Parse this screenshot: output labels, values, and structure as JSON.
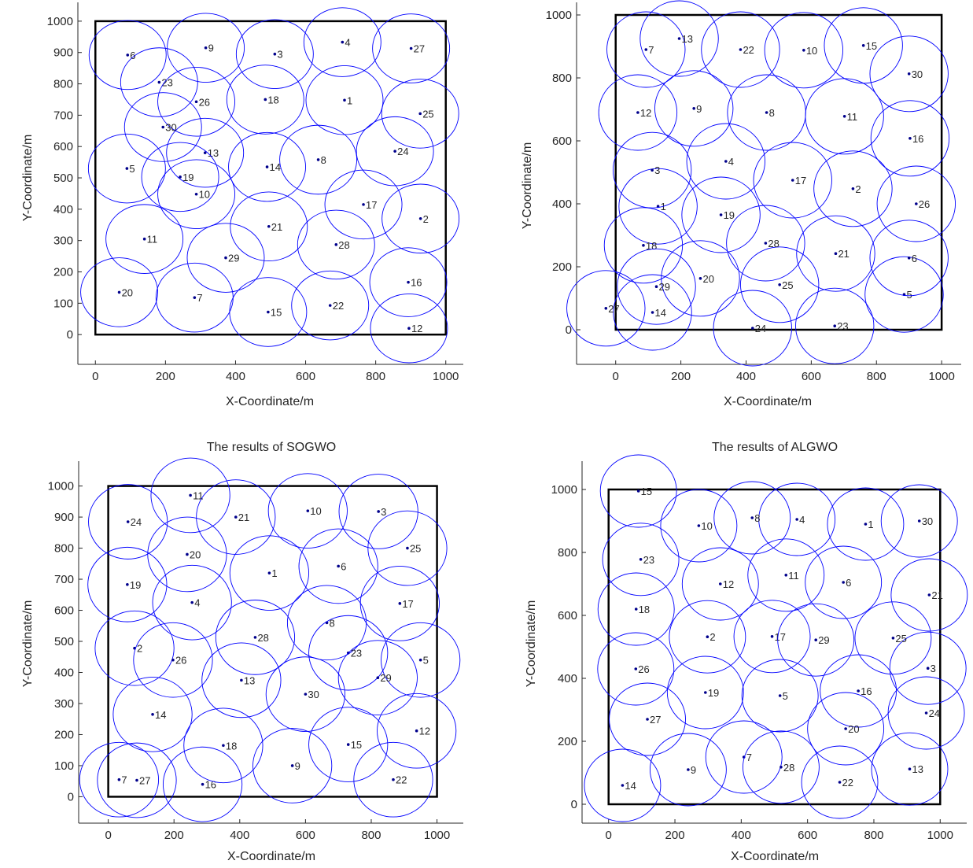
{
  "colors": {
    "circle": "#0000ff",
    "dot": "#00008b",
    "frame": "#000000",
    "axis": "#262626"
  },
  "chart_data": [
    {
      "type": "scatter",
      "title": "",
      "xlabel": "X-Coordinate/m",
      "ylabel": "Y-Coordinate/m",
      "xlim": [
        -50,
        1050
      ],
      "ylim": [
        -95,
        1060
      ],
      "xticks": [
        0,
        200,
        400,
        600,
        800,
        1000
      ],
      "yticks": [
        0,
        100,
        200,
        300,
        400,
        500,
        600,
        700,
        800,
        900,
        1000
      ],
      "region": [
        0,
        1000
      ],
      "radius": 110,
      "sensors": [
        {
          "id": "1",
          "x": 711,
          "y": 748
        },
        {
          "id": "2",
          "x": 928,
          "y": 370
        },
        {
          "id": "3",
          "x": 512,
          "y": 895
        },
        {
          "id": "4",
          "x": 705,
          "y": 933
        },
        {
          "id": "5",
          "x": 90,
          "y": 530
        },
        {
          "id": "6",
          "x": 92,
          "y": 892
        },
        {
          "id": "7",
          "x": 283,
          "y": 118
        },
        {
          "id": "8",
          "x": 636,
          "y": 558
        },
        {
          "id": "9",
          "x": 315,
          "y": 915
        },
        {
          "id": "10",
          "x": 288,
          "y": 448
        },
        {
          "id": "11",
          "x": 140,
          "y": 305
        },
        {
          "id": "12",
          "x": 895,
          "y": 20
        },
        {
          "id": "13",
          "x": 313,
          "y": 580
        },
        {
          "id": "14",
          "x": 490,
          "y": 535
        },
        {
          "id": "15",
          "x": 493,
          "y": 72
        },
        {
          "id": "16",
          "x": 893,
          "y": 167
        },
        {
          "id": "17",
          "x": 765,
          "y": 415
        },
        {
          "id": "18",
          "x": 485,
          "y": 750
        },
        {
          "id": "19",
          "x": 242,
          "y": 503
        },
        {
          "id": "20",
          "x": 68,
          "y": 135
        },
        {
          "id": "21",
          "x": 495,
          "y": 345
        },
        {
          "id": "22",
          "x": 670,
          "y": 93
        },
        {
          "id": "23",
          "x": 182,
          "y": 805
        },
        {
          "id": "24",
          "x": 855,
          "y": 585
        },
        {
          "id": "25",
          "x": 927,
          "y": 705
        },
        {
          "id": "26",
          "x": 288,
          "y": 743
        },
        {
          "id": "27",
          "x": 901,
          "y": 913
        },
        {
          "id": "28",
          "x": 687,
          "y": 287
        },
        {
          "id": "29",
          "x": 372,
          "y": 245
        },
        {
          "id": "30",
          "x": 193,
          "y": 662
        }
      ]
    },
    {
      "type": "scatter",
      "title": "",
      "xlabel": "X-Coordinate/m",
      "ylabel": "Y-Coordinate/m",
      "xlim": [
        -120,
        1060
      ],
      "ylim": [
        -110,
        1040
      ],
      "xticks": [
        0,
        200,
        400,
        600,
        800,
        1000
      ],
      "yticks": [
        0,
        200,
        400,
        600,
        800,
        1000
      ],
      "region": [
        0,
        1000
      ],
      "radius": 120,
      "sensors": [
        {
          "id": "1",
          "x": 130,
          "y": 392
        },
        {
          "id": "2",
          "x": 728,
          "y": 448
        },
        {
          "id": "3",
          "x": 112,
          "y": 507
        },
        {
          "id": "4",
          "x": 338,
          "y": 535
        },
        {
          "id": "5",
          "x": 885,
          "y": 112
        },
        {
          "id": "6",
          "x": 900,
          "y": 228
        },
        {
          "id": "7",
          "x": 93,
          "y": 890
        },
        {
          "id": "8",
          "x": 463,
          "y": 690
        },
        {
          "id": "9",
          "x": 240,
          "y": 703
        },
        {
          "id": "10",
          "x": 577,
          "y": 888
        },
        {
          "id": "11",
          "x": 702,
          "y": 678
        },
        {
          "id": "12",
          "x": 68,
          "y": 690
        },
        {
          "id": "13",
          "x": 195,
          "y": 925
        },
        {
          "id": "14",
          "x": 113,
          "y": 55
        },
        {
          "id": "15",
          "x": 760,
          "y": 903
        },
        {
          "id": "16",
          "x": 903,
          "y": 608
        },
        {
          "id": "17",
          "x": 543,
          "y": 475
        },
        {
          "id": "18",
          "x": 85,
          "y": 268
        },
        {
          "id": "19",
          "x": 323,
          "y": 365
        },
        {
          "id": "20",
          "x": 260,
          "y": 163
        },
        {
          "id": "21",
          "x": 675,
          "y": 242
        },
        {
          "id": "22",
          "x": 383,
          "y": 890
        },
        {
          "id": "23",
          "x": 672,
          "y": 12
        },
        {
          "id": "24",
          "x": 420,
          "y": 5
        },
        {
          "id": "25",
          "x": 503,
          "y": 143
        },
        {
          "id": "26",
          "x": 922,
          "y": 400
        },
        {
          "id": "27",
          "x": -30,
          "y": 68
        },
        {
          "id": "28",
          "x": 460,
          "y": 275
        },
        {
          "id": "29",
          "x": 125,
          "y": 137
        },
        {
          "id": "30",
          "x": 900,
          "y": 813
        }
      ]
    },
    {
      "type": "scatter",
      "title": "The results of SOGWO",
      "xlabel": "X-Coordinate/m",
      "ylabel": "Y-Coordinate/m",
      "xlim": [
        -90,
        1080
      ],
      "ylim": [
        -85,
        1080
      ],
      "xticks": [
        0,
        200,
        400,
        600,
        800,
        1000
      ],
      "yticks": [
        0,
        100,
        200,
        300,
        400,
        500,
        600,
        700,
        800,
        900,
        1000
      ],
      "region": [
        0,
        1000
      ],
      "radius": 120,
      "sensors": [
        {
          "id": "1",
          "x": 490,
          "y": 720
        },
        {
          "id": "2",
          "x": 80,
          "y": 478
        },
        {
          "id": "3",
          "x": 822,
          "y": 918
        },
        {
          "id": "4",
          "x": 255,
          "y": 625
        },
        {
          "id": "5",
          "x": 950,
          "y": 440
        },
        {
          "id": "6",
          "x": 700,
          "y": 742
        },
        {
          "id": "7",
          "x": 33,
          "y": 55
        },
        {
          "id": "8",
          "x": 665,
          "y": 560
        },
        {
          "id": "9",
          "x": 560,
          "y": 100
        },
        {
          "id": "10",
          "x": 607,
          "y": 920
        },
        {
          "id": "11",
          "x": 250,
          "y": 970
        },
        {
          "id": "12",
          "x": 938,
          "y": 212
        },
        {
          "id": "13",
          "x": 405,
          "y": 375
        },
        {
          "id": "14",
          "x": 135,
          "y": 265
        },
        {
          "id": "15",
          "x": 730,
          "y": 168
        },
        {
          "id": "16",
          "x": 287,
          "y": 40
        },
        {
          "id": "17",
          "x": 887,
          "y": 622
        },
        {
          "id": "18",
          "x": 350,
          "y": 165
        },
        {
          "id": "19",
          "x": 58,
          "y": 683
        },
        {
          "id": "20",
          "x": 240,
          "y": 780
        },
        {
          "id": "21",
          "x": 388,
          "y": 900
        },
        {
          "id": "22",
          "x": 867,
          "y": 55
        },
        {
          "id": "23",
          "x": 730,
          "y": 463
        },
        {
          "id": "24",
          "x": 60,
          "y": 885
        },
        {
          "id": "25",
          "x": 910,
          "y": 800
        },
        {
          "id": "26",
          "x": 197,
          "y": 440
        },
        {
          "id": "27",
          "x": 87,
          "y": 53
        },
        {
          "id": "28",
          "x": 447,
          "y": 513
        },
        {
          "id": "29",
          "x": 820,
          "y": 383
        },
        {
          "id": "30",
          "x": 600,
          "y": 330
        }
      ]
    },
    {
      "type": "scatter",
      "title": "The results of ALGWO",
      "xlabel": "X-Coordinate/m",
      "ylabel": "Y-Coordinate/m",
      "xlim": [
        -80,
        1080
      ],
      "ylim": [
        -60,
        1090
      ],
      "xticks": [
        0,
        200,
        400,
        600,
        800,
        1000
      ],
      "yticks": [
        0,
        200,
        400,
        600,
        800,
        1000
      ],
      "region": [
        0,
        1000
      ],
      "radius": 115,
      "sensors": [
        {
          "id": "1",
          "x": 775,
          "y": 890
        },
        {
          "id": "2",
          "x": 298,
          "y": 532
        },
        {
          "id": "3",
          "x": 963,
          "y": 432
        },
        {
          "id": "4",
          "x": 568,
          "y": 905
        },
        {
          "id": "5",
          "x": 517,
          "y": 345
        },
        {
          "id": "6",
          "x": 708,
          "y": 705
        },
        {
          "id": "7",
          "x": 408,
          "y": 150
        },
        {
          "id": "8",
          "x": 433,
          "y": 910
        },
        {
          "id": "9",
          "x": 240,
          "y": 110
        },
        {
          "id": "10",
          "x": 272,
          "y": 885
        },
        {
          "id": "11",
          "x": 535,
          "y": 728
        },
        {
          "id": "12",
          "x": 337,
          "y": 700
        },
        {
          "id": "13",
          "x": 908,
          "y": 112
        },
        {
          "id": "14",
          "x": 42,
          "y": 60
        },
        {
          "id": "15",
          "x": 90,
          "y": 995
        },
        {
          "id": "16",
          "x": 753,
          "y": 360
        },
        {
          "id": "17",
          "x": 493,
          "y": 533
        },
        {
          "id": "18",
          "x": 83,
          "y": 620
        },
        {
          "id": "19",
          "x": 292,
          "y": 355
        },
        {
          "id": "20",
          "x": 715,
          "y": 240
        },
        {
          "id": "21",
          "x": 967,
          "y": 665
        },
        {
          "id": "22",
          "x": 697,
          "y": 70
        },
        {
          "id": "23",
          "x": 97,
          "y": 778
        },
        {
          "id": "24",
          "x": 958,
          "y": 290
        },
        {
          "id": "25",
          "x": 858,
          "y": 528
        },
        {
          "id": "26",
          "x": 82,
          "y": 430
        },
        {
          "id": "27",
          "x": 117,
          "y": 270
        },
        {
          "id": "28",
          "x": 520,
          "y": 118
        },
        {
          "id": "29",
          "x": 625,
          "y": 522
        },
        {
          "id": "30",
          "x": 937,
          "y": 900
        }
      ]
    }
  ]
}
